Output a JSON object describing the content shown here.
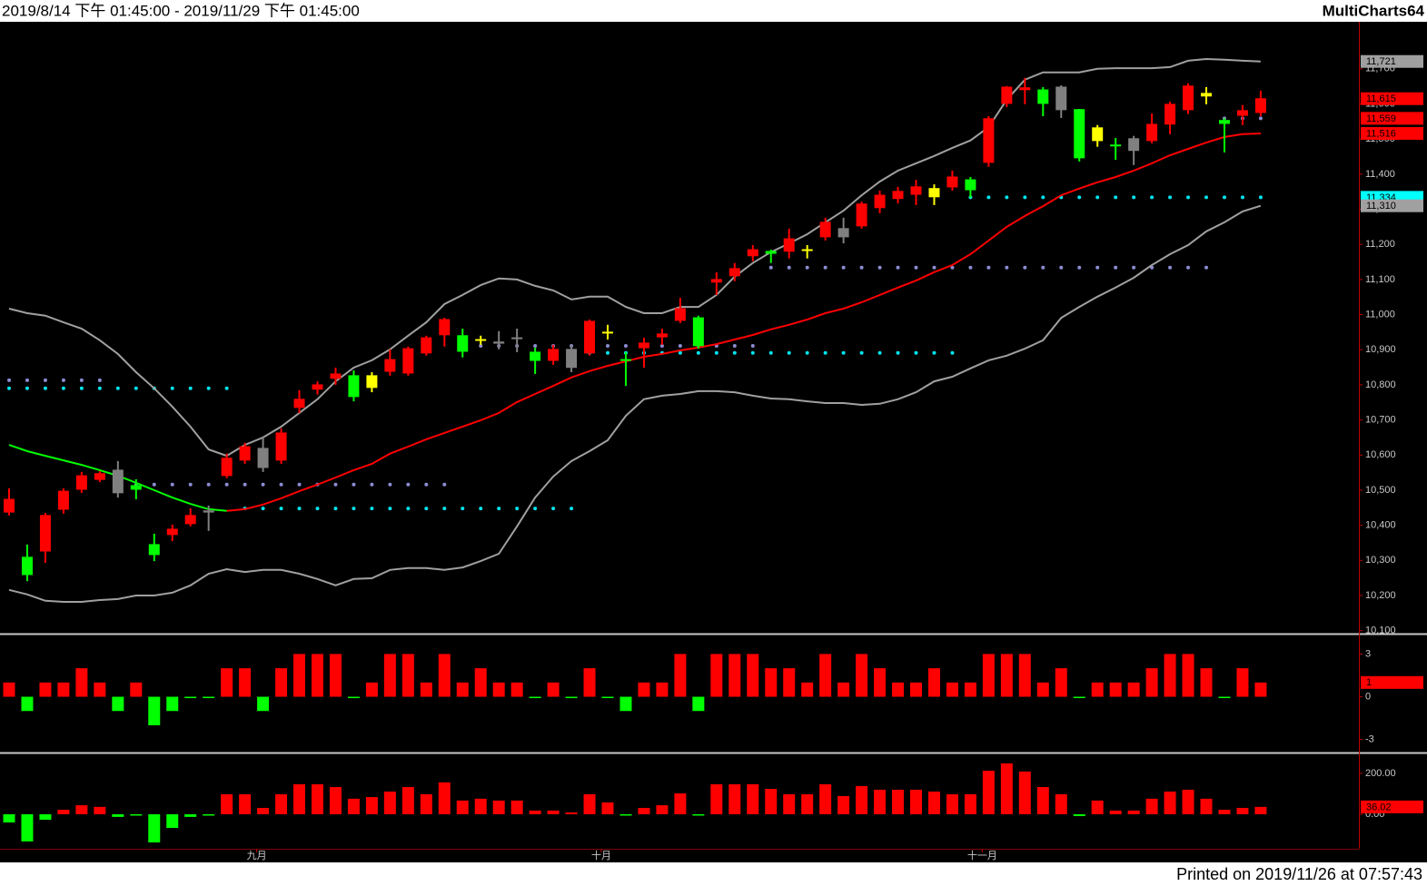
{
  "header": {
    "range": "2019/8/14 下午 01:45:00 - 2019/11/29 下午 01:45:00",
    "product": "MultiCharts64"
  },
  "footer": {
    "printed": "Printed on 2019/11/26 at 07:57:43"
  },
  "chart_data": [
    {
      "type": "candlestick",
      "categories": [
        null,
        null,
        null,
        null,
        null,
        null,
        null,
        null,
        null,
        null,
        null,
        null,
        null,
        null,
        "九月",
        null,
        null,
        null,
        null,
        null,
        null,
        null,
        null,
        null,
        null,
        null,
        null,
        null,
        null,
        null,
        null,
        null,
        null,
        "十月",
        null,
        null,
        null,
        null,
        null,
        null,
        null,
        null,
        null,
        null,
        null,
        null,
        null,
        null,
        null,
        null,
        null,
        null,
        null,
        null,
        "十一月",
        null,
        null,
        null,
        null,
        null,
        null,
        null,
        null,
        null,
        null,
        null,
        null,
        null,
        null,
        null
      ],
      "open": [
        10435,
        10309,
        10324,
        10443,
        10500,
        10528,
        10557,
        10513,
        10345,
        10371,
        10402,
        10441,
        10539,
        10583,
        10619,
        10583,
        10733,
        10785,
        10816,
        10826,
        10790,
        10836,
        10831,
        10888,
        10940,
        10940,
        10924,
        10922,
        10934,
        10893,
        10867,
        10901,
        10888,
        10945,
        10872,
        10903,
        10934,
        10981,
        10991,
        11090,
        11108,
        11165,
        11180,
        11178,
        11180,
        11219,
        11245,
        11250,
        11302,
        11328,
        11340,
        11333,
        11361,
        11384,
        11431,
        11599,
        11638,
        11640,
        11648,
        11584,
        11493,
        11483,
        11501,
        11493,
        11540,
        11581,
        11620,
        11553,
        11565,
        11573
      ],
      "high": [
        10505,
        10345,
        10435,
        10505,
        10552,
        10554,
        10583,
        10531,
        10376,
        10402,
        10448,
        10456,
        10604,
        10635,
        10650,
        10676,
        10785,
        10810,
        10849,
        10841,
        10836,
        10901,
        10909,
        10940,
        10991,
        10960,
        10940,
        10953,
        10960,
        10906,
        10914,
        10914,
        10986,
        10971,
        10893,
        10934,
        10960,
        11048,
        10997,
        11121,
        11147,
        11198,
        11185,
        11245,
        11198,
        11276,
        11276,
        11322,
        11353,
        11364,
        11384,
        11371,
        11410,
        11392,
        11565,
        11651,
        11674,
        11648,
        11653,
        11586,
        11540,
        11503,
        11509,
        11573,
        11607,
        11659,
        11648,
        11560,
        11597,
        11638
      ],
      "low": [
        10428,
        10241,
        10293,
        10433,
        10492,
        10523,
        10479,
        10474,
        10298,
        10355,
        10397,
        10384,
        10534,
        10575,
        10552,
        10575,
        10720,
        10772,
        10800,
        10753,
        10779,
        10826,
        10826,
        10883,
        10909,
        10878,
        10914,
        10901,
        10893,
        10831,
        10857,
        10836,
        10883,
        10929,
        10797,
        10849,
        10914,
        10976,
        10903,
        11056,
        11095,
        11152,
        11147,
        11160,
        11160,
        11211,
        11203,
        11245,
        11289,
        11317,
        11312,
        11312,
        11353,
        11333,
        11421,
        11591,
        11599,
        11565,
        11560,
        11436,
        11478,
        11441,
        11426,
        11488,
        11514,
        11571,
        11599,
        11462,
        11540,
        11565
      ],
      "close": [
        10474,
        10257,
        10428,
        10497,
        10541,
        10547,
        10490,
        10500,
        10314,
        10389,
        10428,
        10435,
        10591,
        10624,
        10562,
        10663,
        10759,
        10800,
        10831,
        10764,
        10826,
        10872,
        10903,
        10934,
        10986,
        10893,
        10929,
        10916,
        10929,
        10867,
        10901,
        10847,
        10981,
        10950,
        10867,
        10919,
        10945,
        11017,
        10909,
        11100,
        11131,
        11185,
        11172,
        11216,
        11185,
        11263,
        11219,
        11315,
        11340,
        11351,
        11364,
        11359,
        11392,
        11353,
        11558,
        11648,
        11646,
        11599,
        11581,
        11444,
        11532,
        11478,
        11465,
        11542,
        11599,
        11651,
        11630,
        11542,
        11581,
        11615
      ],
      "candle_colors": [
        "#ff0000",
        "#00ff00",
        "#ff0000",
        "#ff0000",
        "#ff0000",
        "#ff0000",
        "#808080",
        "#00ff00",
        "#00ff00",
        "#ff0000",
        "#ff0000",
        "#808080",
        "#ff0000",
        "#ff0000",
        "#808080",
        "#ff0000",
        "#ff0000",
        "#ff0000",
        "#ff0000",
        "#00ff00",
        "#ffff00",
        "#ff0000",
        "#ff0000",
        "#ff0000",
        "#ff0000",
        "#00ff00",
        "#ffff00",
        "#808080",
        "#808080",
        "#00ff00",
        "#ff0000",
        "#808080",
        "#ff0000",
        "#ffff00",
        "#00ff00",
        "#ff0000",
        "#ff0000",
        "#ff0000",
        "#00ff00",
        "#ff0000",
        "#ff0000",
        "#ff0000",
        "#00ff00",
        "#ff0000",
        "#ffff00",
        "#ff0000",
        "#808080",
        "#ff0000",
        "#ff0000",
        "#ff0000",
        "#ff0000",
        "#ffff00",
        "#ff0000",
        "#00ff00",
        "#ff0000",
        "#ff0000",
        "#ff0000",
        "#00ff00",
        "#808080",
        "#00ff00",
        "#ffff00",
        "#00ff00",
        "#808080",
        "#ff0000",
        "#ff0000",
        "#ff0000",
        "#ffff00",
        "#00ff00",
        "#ff0000",
        "#ff0000"
      ],
      "lines": [
        {
          "color": "#a0a0a0",
          "values": [
            11017,
            11004,
            10997,
            10978,
            10960,
            10927,
            10888,
            10836,
            10790,
            10738,
            10681,
            10616,
            10598,
            10629,
            10650,
            10681,
            10720,
            10759,
            10810,
            10849,
            10870,
            10901,
            10940,
            10978,
            11030,
            11056,
            11084,
            11103,
            11100,
            11082,
            11069,
            11043,
            11051,
            11051,
            11022,
            11004,
            11004,
            11022,
            11022,
            11056,
            11108,
            11147,
            11178,
            11203,
            11229,
            11263,
            11296,
            11340,
            11379,
            11410,
            11431,
            11452,
            11475,
            11496,
            11534,
            11612,
            11669,
            11690,
            11690,
            11690,
            11700,
            11702,
            11702,
            11702,
            11705,
            11723,
            11728,
            11726,
            11723,
            11721
          ]
        },
        {
          "color": "#a0a0a0",
          "values": [
            10216,
            10203,
            10185,
            10182,
            10182,
            10187,
            10190,
            10200,
            10200,
            10208,
            10229,
            10262,
            10275,
            10267,
            10273,
            10273,
            10262,
            10247,
            10229,
            10247,
            10249,
            10273,
            10278,
            10278,
            10273,
            10280,
            10298,
            10319,
            10397,
            10479,
            10539,
            10583,
            10611,
            10642,
            10712,
            10759,
            10769,
            10774,
            10782,
            10782,
            10779,
            10769,
            10761,
            10759,
            10753,
            10748,
            10748,
            10743,
            10746,
            10759,
            10779,
            10810,
            10823,
            10847,
            10870,
            10883,
            10903,
            10927,
            10991,
            11022,
            11051,
            11077,
            11105,
            11141,
            11172,
            11198,
            11237,
            11263,
            11294,
            11310
          ]
        },
        {
          "color": "#00ff00",
          "values": [
            10629,
            10611,
            10598,
            10585,
            10572,
            10557,
            10541,
            10521,
            10500,
            10479,
            10461,
            10446,
            10441,
            null,
            null,
            null,
            null,
            null,
            null,
            null,
            null,
            null,
            null,
            null,
            null,
            null,
            null,
            null,
            null,
            null,
            null,
            null,
            null,
            null,
            null,
            null,
            null,
            null,
            null,
            null,
            null,
            null,
            null,
            null,
            null,
            null,
            null,
            null,
            null,
            null,
            null,
            null,
            null,
            null,
            null,
            null,
            null,
            null,
            null,
            null,
            null,
            null,
            null,
            null,
            null,
            null,
            null,
            null,
            null,
            null
          ]
        },
        {
          "color": "#ff0000",
          "values": [
            null,
            null,
            null,
            null,
            null,
            null,
            null,
            null,
            null,
            null,
            null,
            null,
            10441,
            10446,
            10459,
            10477,
            10497,
            10516,
            10536,
            10557,
            10575,
            10604,
            10624,
            10645,
            10663,
            10681,
            10699,
            10720,
            10751,
            10774,
            10797,
            10821,
            10839,
            10854,
            10867,
            10880,
            10888,
            10898,
            10906,
            10916,
            10929,
            10942,
            10958,
            10971,
            10986,
            11004,
            11017,
            11035,
            11056,
            11077,
            11097,
            11121,
            11141,
            11172,
            11211,
            11250,
            11281,
            11309,
            11340,
            11359,
            11377,
            11392,
            11410,
            11431,
            11454,
            11472,
            11490,
            11506,
            11514,
            11516
          ]
        }
      ],
      "levels": [
        {
          "value": 10813,
          "start": 0,
          "end": 5,
          "color": "#8c8cd2"
        },
        {
          "value": 10790,
          "start": 0,
          "end": 12,
          "color": "#00e5ee"
        },
        {
          "value": 10516,
          "start": 7,
          "end": 24,
          "color": "#8c8cd2"
        },
        {
          "value": 10448,
          "start": 13,
          "end": 31,
          "color": "#00e5ee"
        },
        {
          "value": 10911,
          "start": 26,
          "end": 41,
          "color": "#8c8cd2"
        },
        {
          "value": 10891,
          "start": 32,
          "end": 52,
          "color": "#00e5ee"
        },
        {
          "value": 11134,
          "start": 42,
          "end": 66,
          "color": "#8c8cd2"
        },
        {
          "value": 11334,
          "start": 53,
          "end": 69,
          "color": "#00e5ee"
        },
        {
          "value": 11559,
          "start": 67,
          "end": 69,
          "color": "#8c8cd2"
        }
      ],
      "markers": [
        {
          "value": 11721,
          "label": "11,721",
          "color": "#a0a0a0"
        },
        {
          "value": 11615,
          "label": "11,615",
          "color": "#ff0000"
        },
        {
          "value": 11559,
          "label": "11,559",
          "color": "#ff0000"
        },
        {
          "value": 11516,
          "label": "11,516",
          "color": "#ff0000"
        },
        {
          "value": 11334,
          "label": "11,334",
          "color": "#00ffff"
        },
        {
          "value": 11310,
          "label": "11,310",
          "color": "#a0a0a0"
        }
      ],
      "ylim": [
        10094,
        11834
      ],
      "yticks": [
        {
          "value": 10100,
          "label": "10,100"
        },
        {
          "value": 10200,
          "label": "10,200"
        },
        {
          "value": 10300,
          "label": "10,300"
        },
        {
          "value": 10400,
          "label": "10,400"
        },
        {
          "value": 10500,
          "label": "10,500"
        },
        {
          "value": 10600,
          "label": "10,600"
        },
        {
          "value": 10700,
          "label": "10,700"
        },
        {
          "value": 10800,
          "label": "10,800"
        },
        {
          "value": 10900,
          "label": "10,900"
        },
        {
          "value": 11000,
          "label": "11,000"
        },
        {
          "value": 11100,
          "label": "11,100"
        },
        {
          "value": 11200,
          "label": "11,200"
        },
        {
          "value": 11300,
          "label": "11,300"
        },
        {
          "value": 11400,
          "label": "11,400"
        },
        {
          "value": 11500,
          "label": "11,500"
        },
        {
          "value": 11600,
          "label": "11,600"
        },
        {
          "value": 11700,
          "label": "11,700"
        }
      ]
    },
    {
      "type": "bar",
      "values": [
        1,
        -1,
        1,
        1,
        2,
        1,
        -1,
        1,
        -2,
        -1,
        0,
        0,
        2,
        2,
        -1,
        2,
        3,
        3,
        3,
        0,
        1,
        3,
        3,
        1,
        3,
        1,
        2,
        1,
        1,
        0,
        1,
        0,
        2,
        0,
        -1,
        1,
        1,
        3,
        -1,
        3,
        3,
        3,
        2,
        2,
        1,
        3,
        1,
        3,
        2,
        1,
        1,
        2,
        1,
        1,
        3,
        3,
        3,
        1,
        2,
        0,
        1,
        1,
        1,
        2,
        3,
        3,
        2,
        0,
        2,
        1
      ],
      "up_color": "#ff0000",
      "down_color": "#00ff00",
      "markers": [
        {
          "value": 1,
          "color": "#ff0000"
        }
      ],
      "ylim": [
        -3.85,
        4.3
      ],
      "yticks": [
        3,
        0,
        -3
      ]
    },
    {
      "type": "bar",
      "values": [
        -40,
        -133,
        -27,
        22,
        44,
        36,
        -13,
        -4,
        -138,
        -67,
        -13,
        -4,
        98,
        98,
        31,
        98,
        147,
        147,
        133,
        76,
        84,
        111,
        133,
        98,
        156,
        67,
        76,
        67,
        67,
        18,
        18,
        9,
        98,
        58,
        0,
        31,
        44,
        102,
        -4,
        147,
        147,
        147,
        124,
        98,
        98,
        147,
        89,
        138,
        120,
        120,
        120,
        111,
        98,
        98,
        213,
        249,
        209,
        133,
        98,
        -9,
        67,
        18,
        18,
        76,
        111,
        120,
        76,
        22,
        31,
        36.02
      ],
      "up_color": "#ff0000",
      "down_color": "#00ff00",
      "markers": [
        {
          "value": 36.02,
          "color": "#ff0000"
        }
      ],
      "ylim": [
        -169,
        293
      ],
      "yticks": [
        {
          "value": 200,
          "label": "200.00"
        },
        {
          "value": 0,
          "label": "0.00"
        }
      ]
    }
  ]
}
